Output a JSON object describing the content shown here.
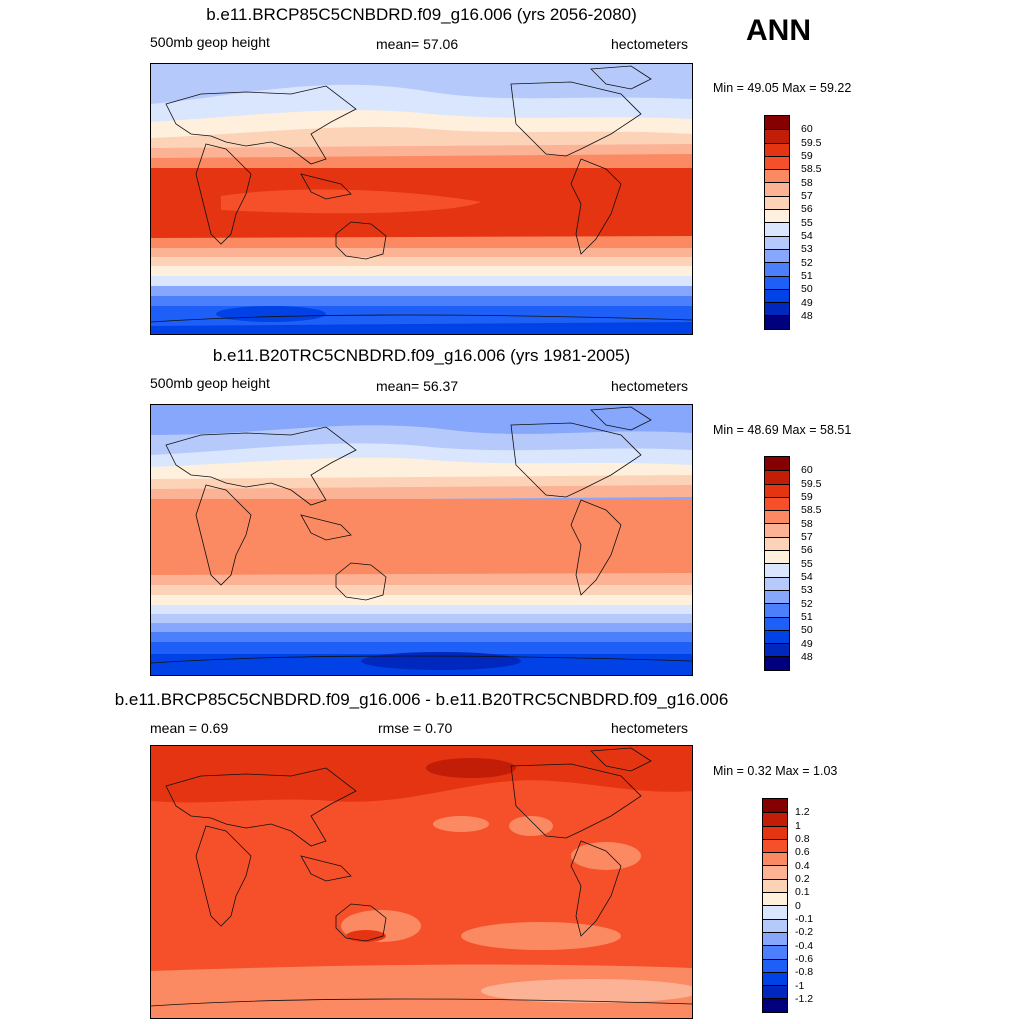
{
  "season": "ANN",
  "palette_abs": [
    "#00007f",
    "#0028be",
    "#0042e5",
    "#1d5ff7",
    "#4b7ffb",
    "#86a7fb",
    "#b6c9fb",
    "#d9e6fd",
    "#fff0dd",
    "#fdd3b8",
    "#fcb295",
    "#fb8a62",
    "#f6502a",
    "#e53412",
    "#c21d07",
    "#850000"
  ],
  "palette_diff": [
    "#00007f",
    "#0028be",
    "#0042e5",
    "#1d5ff7",
    "#4b7ffb",
    "#86a7fb",
    "#b6c9fb",
    "#d9e6fd",
    "#fff0dd",
    "#fdd3b8",
    "#fcb295",
    "#fb8a62",
    "#f6502a",
    "#e53412",
    "#c21d07",
    "#850000"
  ],
  "panels": [
    {
      "title": "b.e11.BRCP85C5CNBDRD.f09_g16.006 (yrs 2056-2080)",
      "left_label": "500mb geop height",
      "center_label": "mean=  57.06",
      "right_label": "hectometers",
      "minmax": "Min =  49.05 Max =  59.22",
      "legend_labels": [
        "60",
        "59.5",
        "59",
        "58.5",
        "58",
        "57",
        "56",
        "55",
        "54",
        "53",
        "52",
        "51",
        "50",
        "49",
        "48"
      ]
    },
    {
      "title": "b.e11.B20TRC5CNBDRD.f09_g16.006 (yrs 1981-2005)",
      "left_label": "500mb geop height",
      "center_label": "mean=  56.37",
      "right_label": "hectometers",
      "minmax": "Min =  48.69 Max =  58.51",
      "legend_labels": [
        "60",
        "59.5",
        "59",
        "58.5",
        "58",
        "57",
        "56",
        "55",
        "54",
        "53",
        "52",
        "51",
        "50",
        "49",
        "48"
      ]
    },
    {
      "title": "b.e11.BRCP85C5CNBDRD.f09_g16.006 - b.e11.B20TRC5CNBDRD.f09_g16.006",
      "left_label": "mean =   0.69",
      "center_label": "rmse =   0.70",
      "right_label": "hectometers",
      "minmax": "Min =   0.32 Max =   1.03",
      "legend_labels": [
        "1.2",
        "1",
        "0.8",
        "0.6",
        "0.4",
        "0.2",
        "0.1",
        "0",
        "-0.1",
        "-0.2",
        "-0.4",
        "-0.6",
        "-0.8",
        "-1",
        "-1.2"
      ]
    }
  ]
}
